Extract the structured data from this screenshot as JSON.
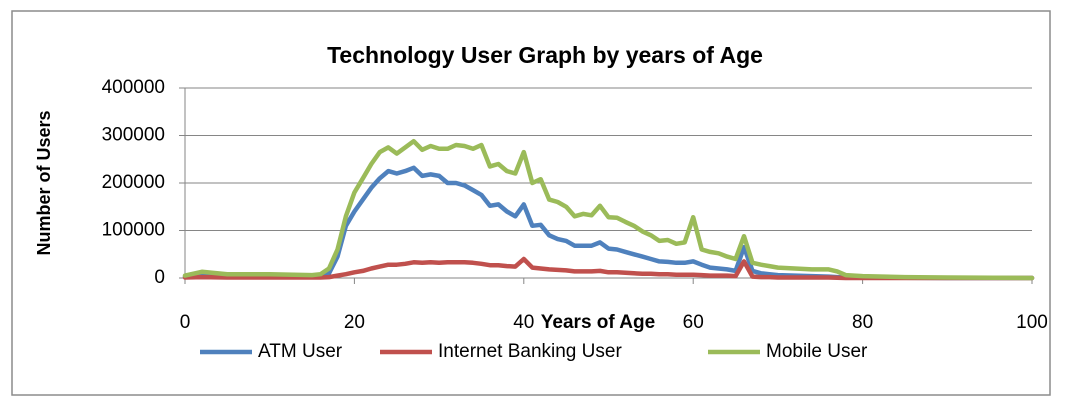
{
  "chart_data": {
    "type": "line",
    "title": "Technology User Graph by years of Age",
    "x_label": "Years of Age",
    "y_label": "Number of Users",
    "x": [
      0,
      2,
      5,
      10,
      15,
      16,
      17,
      18,
      19,
      20,
      21,
      22,
      23,
      24,
      25,
      26,
      27,
      28,
      29,
      30,
      31,
      32,
      33,
      34,
      35,
      36,
      37,
      38,
      39,
      40,
      41,
      42,
      43,
      44,
      45,
      46,
      47,
      48,
      49,
      50,
      51,
      52,
      53,
      54,
      55,
      56,
      57,
      58,
      59,
      60,
      61,
      62,
      63,
      64,
      65,
      66,
      67,
      68,
      69,
      70,
      72,
      74,
      76,
      77,
      78,
      80,
      85,
      90,
      100
    ],
    "series": [
      {
        "name": "ATM User",
        "color": "#4f81bd",
        "values": [
          3000,
          5000,
          4000,
          4000,
          4000,
          5000,
          10000,
          45000,
          110000,
          140000,
          165000,
          190000,
          210000,
          225000,
          220000,
          225000,
          232000,
          215000,
          218000,
          215000,
          200000,
          200000,
          195000,
          185000,
          175000,
          152000,
          155000,
          140000,
          130000,
          155000,
          110000,
          112000,
          90000,
          82000,
          78000,
          68000,
          68000,
          68000,
          75000,
          62000,
          60000,
          55000,
          50000,
          45000,
          40000,
          35000,
          34000,
          32000,
          32000,
          35000,
          28000,
          22000,
          20000,
          18000,
          15000,
          65000,
          15000,
          10000,
          8000,
          6000,
          5000,
          4000,
          3000,
          2000,
          1000,
          1000,
          500,
          0,
          0
        ]
      },
      {
        "name": "Internet Banking User",
        "color": "#c0504d",
        "values": [
          1000,
          2000,
          1000,
          1000,
          1000,
          1000,
          2000,
          5000,
          8000,
          12000,
          15000,
          20000,
          24000,
          28000,
          28000,
          30000,
          33000,
          32000,
          33000,
          32000,
          33000,
          33000,
          33000,
          32000,
          30000,
          27000,
          27000,
          25000,
          24000,
          40000,
          22000,
          20000,
          18000,
          17000,
          16000,
          14000,
          14000,
          14000,
          15000,
          12000,
          12000,
          11000,
          10000,
          9000,
          9000,
          8000,
          8000,
          7000,
          7000,
          7000,
          6000,
          5000,
          5000,
          5000,
          4000,
          35000,
          3000,
          2000,
          2000,
          1000,
          1000,
          1000,
          1000,
          500,
          0,
          0,
          0,
          0,
          0
        ]
      },
      {
        "name": "Mobile User",
        "color": "#9bbb59",
        "values": [
          5000,
          13000,
          8000,
          8000,
          6000,
          8000,
          20000,
          60000,
          130000,
          180000,
          210000,
          240000,
          265000,
          275000,
          262000,
          275000,
          288000,
          270000,
          278000,
          272000,
          272000,
          280000,
          278000,
          272000,
          280000,
          235000,
          240000,
          225000,
          220000,
          265000,
          200000,
          208000,
          165000,
          160000,
          150000,
          130000,
          135000,
          132000,
          152000,
          128000,
          127000,
          118000,
          110000,
          98000,
          90000,
          78000,
          80000,
          72000,
          75000,
          128000,
          60000,
          55000,
          52000,
          45000,
          40000,
          88000,
          32000,
          28000,
          25000,
          22000,
          20000,
          18000,
          18000,
          14000,
          6000,
          4000,
          2000,
          1000,
          0
        ]
      }
    ],
    "xlim": [
      0,
      100
    ],
    "xticks": [
      0,
      20,
      40,
      60,
      80,
      100
    ],
    "ylim": [
      0,
      400000
    ],
    "yticks": [
      0,
      100000,
      200000,
      300000,
      400000
    ],
    "grid": true,
    "legend": "bottom"
  }
}
